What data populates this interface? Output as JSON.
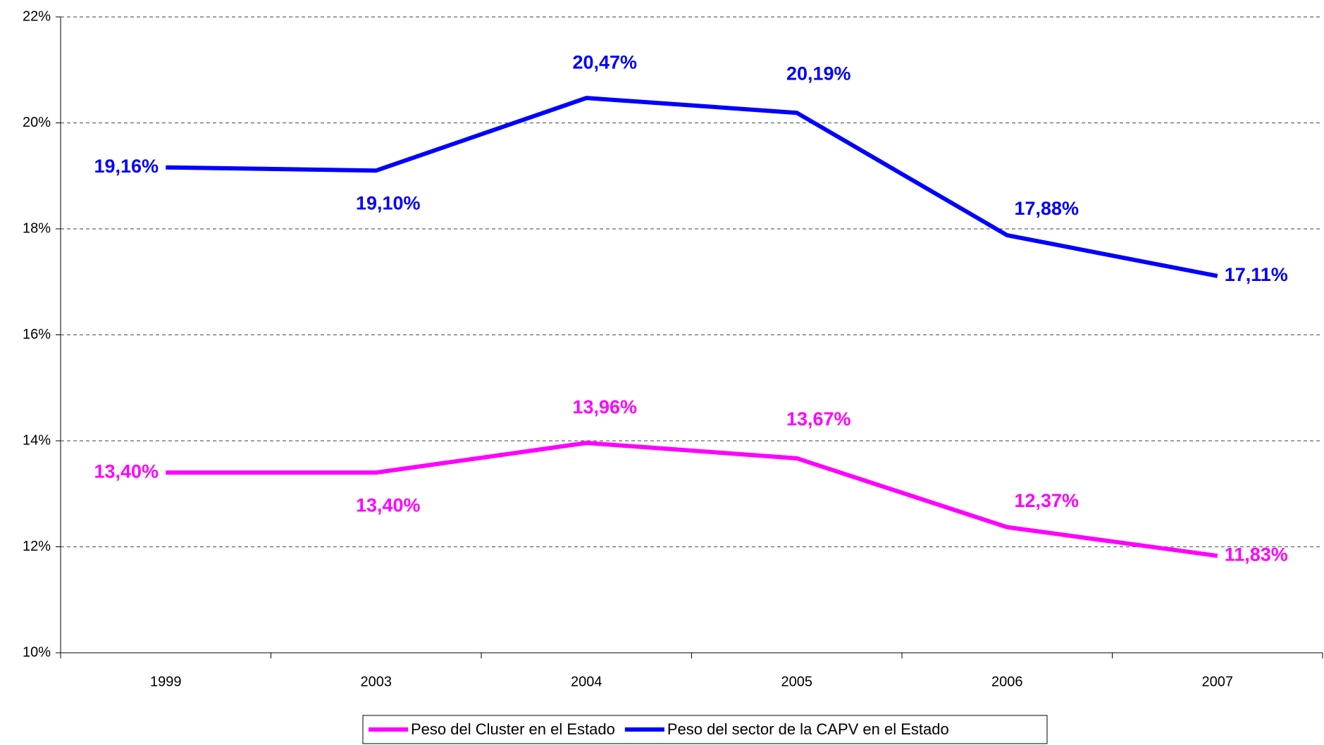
{
  "chart_data": {
    "type": "line",
    "categories": [
      "1999",
      "2003",
      "2004",
      "2005",
      "2006",
      "2007"
    ],
    "series": [
      {
        "name": "Peso del Cluster en el Estado",
        "color": "#ff00ff",
        "values": [
          13.4,
          13.4,
          13.96,
          13.67,
          12.37,
          11.83
        ],
        "value_labels": [
          "13,40%",
          "13,40%",
          "13,96%",
          "13,67%",
          "12,37%",
          "11,83%"
        ]
      },
      {
        "name": "Peso del sector de la CAPV en el Estado",
        "color": "#0000ff",
        "values": [
          19.16,
          19.1,
          20.47,
          20.19,
          17.88,
          17.11
        ],
        "value_labels": [
          "19,16%",
          "19,10%",
          "20,47%",
          "20,19%",
          "17,88%",
          "17,11%"
        ]
      }
    ],
    "ylim": [
      10,
      22
    ],
    "yticks": [
      {
        "value": 10,
        "label": "10%"
      },
      {
        "value": 12,
        "label": "12%"
      },
      {
        "value": 14,
        "label": "14%"
      },
      {
        "value": 16,
        "label": "16%"
      },
      {
        "value": 18,
        "label": "18%"
      },
      {
        "value": 20,
        "label": "20%"
      },
      {
        "value": 22,
        "label": "22%"
      }
    ],
    "grid": true,
    "legend": "bottom"
  }
}
